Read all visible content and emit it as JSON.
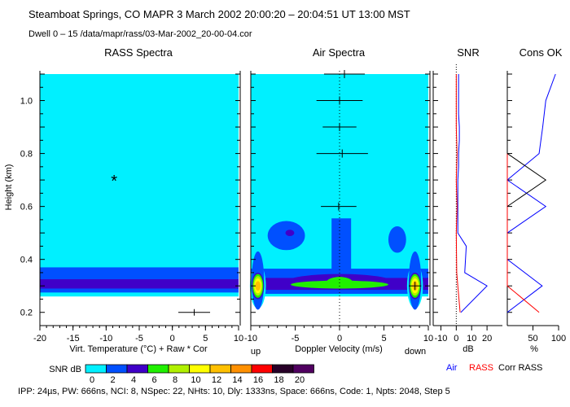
{
  "header": {
    "title": "Steamboat Springs, CO   MAPR    3 March 2002   20:00:20 – 20:04:51 UT     13:00 MST",
    "subtitle": "Dwell  0 – 15    /data/mapr/rass/03-Mar-2002_20-00-04.cor"
  },
  "footer": "IPP:  24µs,  PW:  666ns,  NCI: 8,  NSpec: 22, NHts: 10,  Dly: 1333ns,  Space:  666ns,  Code: 1,  Npts: 2048,  Step 5",
  "colorbar": {
    "label": "SNR dB",
    "ticks": [
      "0",
      "2",
      "4",
      "6",
      "8",
      "10",
      "12",
      "14",
      "16",
      "18",
      "20"
    ],
    "colors": [
      "#00f0ff",
      "#0050ff",
      "#4000c8",
      "#20f000",
      "#b0f000",
      "#ffff00",
      "#ffc000",
      "#ff9000",
      "#ff0000",
      "#280028",
      "#500060"
    ]
  },
  "chart_data": [
    {
      "type": "heatmap",
      "title": "RASS Spectra",
      "xlabel": "Virt. Temperature (°C)   + Raw   * Cor",
      "ylabel": "Height (km)",
      "xlim": [
        -20,
        10
      ],
      "ylim": [
        0.15,
        1.1
      ],
      "xticks": [
        "-20",
        "-15",
        "-10",
        "-5",
        "0",
        "5",
        "10"
      ],
      "yticks": [
        "0.2",
        "0.4",
        "0.6",
        "0.8",
        "1.0"
      ],
      "regions": [
        {
          "level": 0,
          "x": [
            -20,
            10
          ],
          "y": [
            0.26,
            1.1
          ]
        },
        {
          "level": 2,
          "x": [
            -20,
            10
          ],
          "y": [
            0.275,
            0.37
          ]
        },
        {
          "level": 4,
          "x": [
            -20,
            10
          ],
          "y": [
            0.29,
            0.325
          ]
        }
      ],
      "raw_points": [
        {
          "x": 3.3,
          "y": 0.2,
          "err": 2.4
        }
      ],
      "cor_points": [
        {
          "x": -8.8,
          "y": 0.7
        }
      ]
    },
    {
      "type": "heatmap",
      "title": "Air Spectra",
      "xlabel": "Doppler Velocity (m/s)",
      "xlabel_left": "up",
      "xlabel_right": "down",
      "xlim": [
        -10,
        10
      ],
      "ylim": [
        0.15,
        1.1
      ],
      "xticks": [
        "-10",
        "-5",
        "0",
        "5",
        "10"
      ],
      "regions": [
        {
          "level": 0,
          "x": [
            -10,
            10
          ],
          "y": [
            0.26,
            1.1
          ]
        },
        {
          "level": 2,
          "x": [
            -10,
            10
          ],
          "y": [
            0.27,
            0.365
          ]
        },
        {
          "level": 2,
          "shape": "ellipse",
          "cx": -6,
          "cy": 0.49,
          "rx": 2.1,
          "ry": 0.055
        },
        {
          "level": 2,
          "shape": "ellipse",
          "cx": 6.5,
          "cy": 0.475,
          "rx": 1.0,
          "ry": 0.05
        },
        {
          "level": 2,
          "x": [
            -0.9,
            1.3
          ],
          "y": [
            0.36,
            0.555
          ]
        },
        {
          "level": 4,
          "x": [
            -10,
            10
          ],
          "y": [
            0.285,
            0.33
          ]
        },
        {
          "level": 4,
          "shape": "ellipse",
          "cx": -5.6,
          "cy": 0.5,
          "rx": 0.5,
          "ry": 0.012
        },
        {
          "level": 4,
          "shape": "ellipse",
          "cx": 0,
          "cy": 0.315,
          "rx": 6,
          "ry": 0.03
        },
        {
          "level": 6,
          "shape": "ellipse",
          "cx": 0,
          "cy": 0.305,
          "rx": 5.5,
          "ry": 0.015
        },
        {
          "level": 6,
          "shape": "ellipse",
          "cx": 0,
          "cy": 0.312,
          "rx": 1.5,
          "ry": 0.022
        },
        {
          "level": 0,
          "shape": "ellipse",
          "cx": -9.2,
          "cy": 0.3,
          "rx": 0.9,
          "ry": 0.085
        },
        {
          "level": 2,
          "shape": "ellipse",
          "cx": -9.2,
          "cy": 0.32,
          "rx": 0.7,
          "ry": 0.11
        },
        {
          "level": 4,
          "shape": "ellipse",
          "cx": -9.2,
          "cy": 0.3,
          "rx": 0.7,
          "ry": 0.05
        },
        {
          "level": 6,
          "shape": "ellipse",
          "cx": -9.2,
          "cy": 0.3,
          "rx": 0.6,
          "ry": 0.045
        },
        {
          "level": 8,
          "shape": "ellipse",
          "cx": -9.2,
          "cy": 0.3,
          "rx": 0.5,
          "ry": 0.037
        },
        {
          "level": 10,
          "shape": "ellipse",
          "cx": -9.2,
          "cy": 0.3,
          "rx": 0.4,
          "ry": 0.028
        },
        {
          "level": 12,
          "shape": "ellipse",
          "cx": -9.2,
          "cy": 0.3,
          "rx": 0.3,
          "ry": 0.018
        },
        {
          "level": 0,
          "shape": "ellipse",
          "cx": 8.5,
          "cy": 0.3,
          "rx": 0.9,
          "ry": 0.085
        },
        {
          "level": 2,
          "shape": "ellipse",
          "cx": 8.5,
          "cy": 0.32,
          "rx": 0.7,
          "ry": 0.11
        },
        {
          "level": 4,
          "shape": "ellipse",
          "cx": 8.5,
          "cy": 0.3,
          "rx": 0.7,
          "ry": 0.05
        },
        {
          "level": 6,
          "shape": "ellipse",
          "cx": 8.5,
          "cy": 0.3,
          "rx": 0.6,
          "ry": 0.045
        },
        {
          "level": 8,
          "shape": "ellipse",
          "cx": 8.5,
          "cy": 0.3,
          "rx": 0.5,
          "ry": 0.037
        },
        {
          "level": 10,
          "shape": "ellipse",
          "cx": 8.5,
          "cy": 0.3,
          "rx": 0.4,
          "ry": 0.028
        },
        {
          "level": 12,
          "shape": "ellipse",
          "cx": 8.5,
          "cy": 0.3,
          "rx": 0.3,
          "ry": 0.018
        }
      ],
      "points": [
        {
          "x": 0.55,
          "y": 1.1,
          "err": 2.3
        },
        {
          "x": 0.0,
          "y": 1.0,
          "err": 2.6
        },
        {
          "x": 0.0,
          "y": 0.9,
          "err": 1.9
        },
        {
          "x": 0.3,
          "y": 0.8,
          "err": 2.9
        },
        {
          "x": -0.1,
          "y": 0.6,
          "err": 2.0
        },
        {
          "x": 8.5,
          "y": 0.3,
          "err": 0.7
        }
      ]
    },
    {
      "type": "line",
      "title": "SNR",
      "xlabel": "dB",
      "xlim": [
        -15,
        30
      ],
      "ylim": [
        0.15,
        1.1
      ],
      "xticks": [
        "-10",
        "0",
        "10",
        "20"
      ],
      "series": [
        {
          "name": "Air",
          "color": "#0000ff",
          "y": [
            0.2,
            0.3,
            0.35,
            0.4,
            0.45,
            0.5,
            0.55,
            0.6,
            0.65,
            0.7,
            0.75,
            0.8,
            0.85,
            0.9,
            0.95,
            1.0,
            1.05,
            1.1
          ],
          "x": [
            3,
            20,
            5.5,
            6,
            6.5,
            1,
            1,
            1,
            1,
            1,
            1.5,
            1.5,
            2,
            2,
            1.5,
            1.5,
            1.5,
            1.5
          ]
        },
        {
          "name": "RASS",
          "color": "#ff0000",
          "y": [
            0.2,
            0.3,
            0.35,
            0.4,
            0.5,
            0.6,
            0.7,
            0.8,
            0.9,
            1.0,
            1.1
          ],
          "x": [
            2.5,
            1,
            0.3,
            0.2,
            0,
            0.5,
            0,
            0.5,
            0,
            0,
            0
          ]
        }
      ]
    },
    {
      "type": "line",
      "title": "Cons OK",
      "xlabel": "%",
      "xlim": [
        0,
        100
      ],
      "ylim": [
        0.15,
        1.1
      ],
      "xticks": [
        "50",
        "100"
      ],
      "series": [
        {
          "name": "Air",
          "color": "#0000ff",
          "y": [
            0.2,
            0.3,
            0.4,
            0.5,
            0.6,
            0.7,
            0.8,
            0.9,
            1.0,
            1.1
          ],
          "x": [
            0,
            68,
            0,
            0,
            75,
            0,
            62,
            69,
            75,
            94
          ]
        },
        {
          "name": "RASS",
          "color": "#ff0000",
          "y": [
            0.2,
            0.3,
            0.6,
            0.7,
            0.8
          ],
          "x": [
            62,
            0,
            0,
            0,
            0
          ]
        },
        {
          "name": "Corr RASS",
          "color": "#000000",
          "y": [
            0.6,
            0.7,
            0.8
          ],
          "x": [
            0,
            75,
            0
          ]
        }
      ]
    }
  ]
}
